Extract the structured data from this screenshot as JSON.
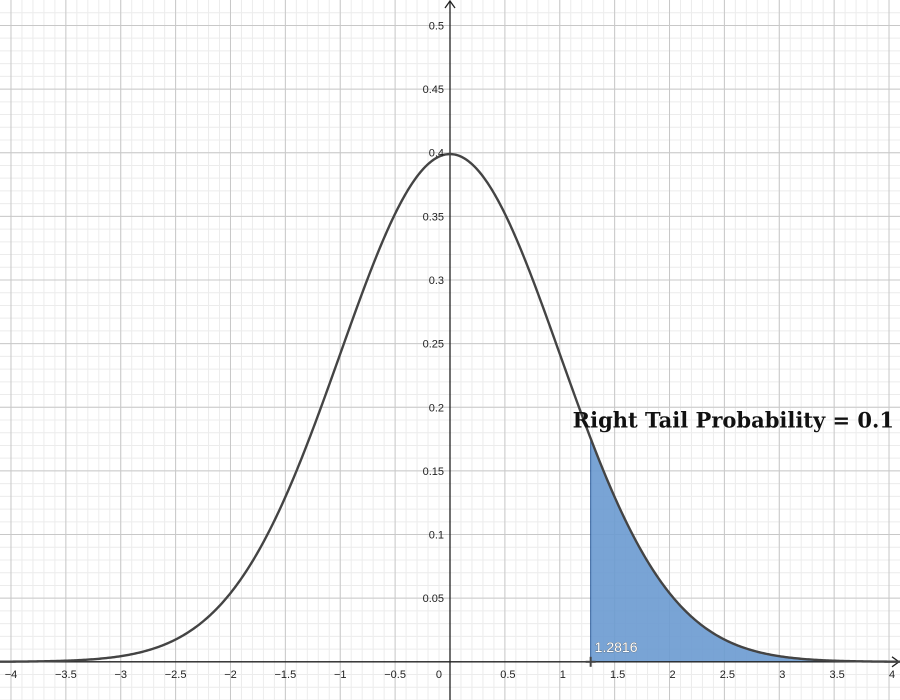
{
  "chart_data": {
    "type": "area",
    "function": "standard-normal-density",
    "mean": 0,
    "sd": 1,
    "xlim": [
      -4.1,
      4.1
    ],
    "ylim": [
      -0.03,
      0.52
    ],
    "x_ticks": [
      -4,
      -3.5,
      -3,
      -2.5,
      -2,
      -1.5,
      -1,
      -0.5,
      0,
      0.5,
      1,
      1.5,
      2,
      2.5,
      3,
      3.5,
      4
    ],
    "x_tick_labels": [
      "−4",
      "−3.5",
      "−3",
      "−2.5",
      "−2",
      "−1.5",
      "−1",
      "−0.5",
      "0",
      "0.5",
      "1",
      "1.5",
      "2",
      "2.5",
      "3",
      "3.5",
      "4"
    ],
    "y_ticks": [
      0.05,
      0.1,
      0.15,
      0.2,
      0.25,
      0.3,
      0.35,
      0.4,
      0.45,
      0.5
    ],
    "y_tick_labels": [
      "0.05",
      "0.1",
      "0.15",
      "0.2",
      "0.25",
      "0.3",
      "0.35",
      "0.4",
      "0.45",
      "0.5"
    ],
    "shaded_region": {
      "from": 1.2816,
      "to": 4.1
    },
    "critical_value": 1.2816,
    "critical_value_label": "1.2816",
    "annotation": "Right Tail Probability = 0.1",
    "grid": true,
    "colors": {
      "curve": "#444444",
      "fill": "#6a9ad0",
      "fill_edge": "#2b5b99",
      "grid_major": "#c8c8c8",
      "grid_minor": "#ececec",
      "axis": "#222222"
    }
  }
}
